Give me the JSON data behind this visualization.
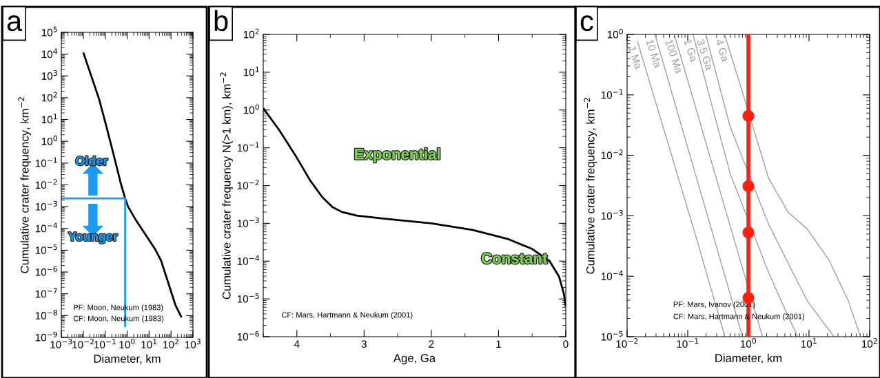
{
  "chart_data": [
    {
      "type": "line",
      "title": "a",
      "xlabel": "Diameter, km",
      "ylabel": "Cumulative crater frequency, km$^{−2}$",
      "log": "xy",
      "xlim": [
        0.001,
        1000
      ],
      "ylim": [
        1e-09,
        100000
      ],
      "xticks": [
        {
          "value": 0.001,
          "label": "10$^{−3}$"
        },
        {
          "value": 0.01,
          "label": "10$^{−2}$"
        },
        {
          "value": 0.1,
          "label": "10$^{−1}$"
        },
        {
          "value": 1,
          "label": "10$^{0}$"
        },
        {
          "value": 10,
          "label": "10$^{1}$"
        },
        {
          "value": 100,
          "label": "10$^{2}$"
        },
        {
          "value": 1000,
          "label": "10$^{3}$"
        }
      ],
      "yticks": [
        {
          "value": 1e-09,
          "label": "10$^{−9}$"
        },
        {
          "value": 1e-08,
          "label": "10$^{−8}$"
        },
        {
          "value": 1e-07,
          "label": "10$^{−7}$"
        },
        {
          "value": 1e-06,
          "label": "10$^{−6}$"
        },
        {
          "value": 1e-05,
          "label": "10$^{−5}$"
        },
        {
          "value": 0.0001,
          "label": "10$^{−4}$"
        },
        {
          "value": 0.001,
          "label": "10$^{−3}$"
        },
        {
          "value": 0.01,
          "label": "10$^{−2}$"
        },
        {
          "value": 0.1,
          "label": "10$^{−1}$"
        },
        {
          "value": 1,
          "label": "10$^{0}$"
        },
        {
          "value": 10,
          "label": "10$^{1}$"
        },
        {
          "value": 100,
          "label": "10$^{2}$"
        },
        {
          "value": 1000,
          "label": "10$^{3}$"
        },
        {
          "value": 10000,
          "label": "10$^{4}$"
        },
        {
          "value": 100000,
          "label": "10$^{5}$"
        }
      ],
      "series": [
        {
          "color": "#000000",
          "x": [
            0.01,
            0.052,
            0.11,
            0.24,
            0.51,
            0.81,
            1.1,
            2.4,
            18,
            35,
            160,
            300
          ],
          "values": [
            12000,
            90,
            5.4,
            0.25,
            0.012,
            0.0024,
            0.001,
            0.00026,
            1.2e-05,
            3.4e-06,
            3e-08,
            8.3e-09
          ]
        },
        {
          "color": "#1a9bf0",
          "x": [
            0.001,
            0.81,
            0.81
          ],
          "values": [
            0.0024,
            0.0024,
            3e-09
          ]
        }
      ],
      "annotations": [
        "Older",
        "Younger",
        "PF: Moon, Neukum (1983)",
        "CF: Moon, Neukum (1983)"
      ]
    },
    {
      "type": "line",
      "title": "b",
      "xlabel": "Age, Ga",
      "ylabel": "Cumulative crater frequency N(>1 km), km$^{−2}$",
      "log": "y",
      "xlim": [
        4.5,
        0
      ],
      "ylim": [
        1e-06,
        100
      ],
      "xticks": [
        4,
        3,
        2,
        1,
        0
      ],
      "yticks": [
        {
          "value": 1e-06,
          "label": "10$^{−6}$"
        },
        {
          "value": 1e-05,
          "label": "10$^{−5}$"
        },
        {
          "value": 0.0001,
          "label": "10$^{−4}$"
        },
        {
          "value": 0.001,
          "label": "10$^{−3}$"
        },
        {
          "value": 0.01,
          "label": "10$^{−2}$"
        },
        {
          "value": 0.1,
          "label": "10$^{−1}$"
        },
        {
          "value": 1,
          "label": "10$^{0}$"
        },
        {
          "value": 10,
          "label": "10$^{1}$"
        },
        {
          "value": 100,
          "label": "10$^{2}$"
        }
      ],
      "series": [
        {
          "color": "#000000",
          "x": [
            4.5,
            4.26,
            4.01,
            3.8,
            3.62,
            3.47,
            3.33,
            3.11,
            2.65,
            2.0,
            1.39,
            0.85,
            0.5,
            0.24,
            0.1,
            0.03,
            0
          ],
          "values": [
            1.12,
            0.29,
            0.058,
            0.0135,
            0.0049,
            0.0027,
            0.002,
            0.0016,
            0.0013,
            0.001,
            0.00067,
            0.00038,
            0.00021,
            0.0001,
            3.9e-05,
            1.4e-05,
            6.3e-06
          ]
        }
      ],
      "annotations": [
        "Exponential",
        "Constant",
        "CF: Mars, Hartmann & Neukum (2001)"
      ]
    },
    {
      "type": "line",
      "title": "c",
      "xlabel": "Diameter, km",
      "ylabel": "Cumulative crater frequency, km$^{−2}$",
      "log": "xy",
      "xlim": [
        0.01,
        100
      ],
      "ylim": [
        1e-05,
        1
      ],
      "xticks": [
        {
          "value": 0.01,
          "label": "10$^{−2}$"
        },
        {
          "value": 0.1,
          "label": "10$^{−1}$"
        },
        {
          "value": 1,
          "label": "10$^{0}$"
        },
        {
          "value": 10,
          "label": "10$^{1}$"
        },
        {
          "value": 100,
          "label": "10$^{2}$"
        }
      ],
      "yticks": [
        {
          "value": 1e-05,
          "label": "10$^{−5}$"
        },
        {
          "value": 0.0001,
          "label": "10$^{−4}$"
        },
        {
          "value": 0.001,
          "label": "10$^{−3}$"
        },
        {
          "value": 0.01,
          "label": "10$^{−2}$"
        },
        {
          "value": 0.1,
          "label": "10$^{−1}$"
        },
        {
          "value": 1,
          "label": "10$^{0}$"
        }
      ],
      "series": [
        {
          "name": "1 Ma",
          "color": "#a0a0a0",
          "x": [
            0.0148,
            0.144,
            0.41
          ],
          "values": [
            0.77,
            0.00038,
            1e-05
          ]
        },
        {
          "name": "10 Ma",
          "color": "#a0a0a0",
          "x": [
            0.0288,
            0.8
          ],
          "values": [
            1,
            1e-05
          ]
        },
        {
          "name": "100 Ma",
          "color": "#a0a0a0",
          "x": [
            0.06,
            1.71
          ],
          "values": [
            1,
            1e-05
          ]
        },
        {
          "name": "1 Ga",
          "color": "#a0a0a0",
          "x": [
            0.122,
            0.5,
            2.15,
            4.1,
            6.5
          ],
          "values": [
            1,
            0.005,
            0.000116,
            2.7e-05,
            1e-05
          ]
        },
        {
          "name": "3.5 Ga",
          "color": "#a0a0a0",
          "x": [
            0.198,
            0.5,
            2.15,
            5.4,
            9.4,
            25.7
          ],
          "values": [
            1,
            0.03,
            0.00073,
            0.000116,
            3.9e-05,
            1e-05
          ]
        },
        {
          "name": "4 Ga",
          "color": "#a0a0a0",
          "x": [
            0.405,
            0.7,
            2.15,
            4.5,
            9.4,
            21.4,
            44.6,
            70.6
          ],
          "values": [
            1,
            0.17,
            0.0042,
            0.00115,
            0.0006,
            0.000184,
            3.9e-05,
            1e-05
          ]
        },
        {
          "color": "#ff2010",
          "x": [
            1,
            1
          ],
          "values": [
            1e-05,
            1
          ]
        },
        {
          "type": "scatter",
          "marker": "circle",
          "color": "#ff2010",
          "x": [
            1,
            1,
            1,
            1
          ],
          "values": [
            0.045,
            0.0031,
            0.00053,
            4.4e-05
          ]
        }
      ],
      "annotations": [
        "PF: Mars, Ivanov (2001)",
        "CF: Mars, Hartmann & Neukum (2001)"
      ]
    }
  ]
}
